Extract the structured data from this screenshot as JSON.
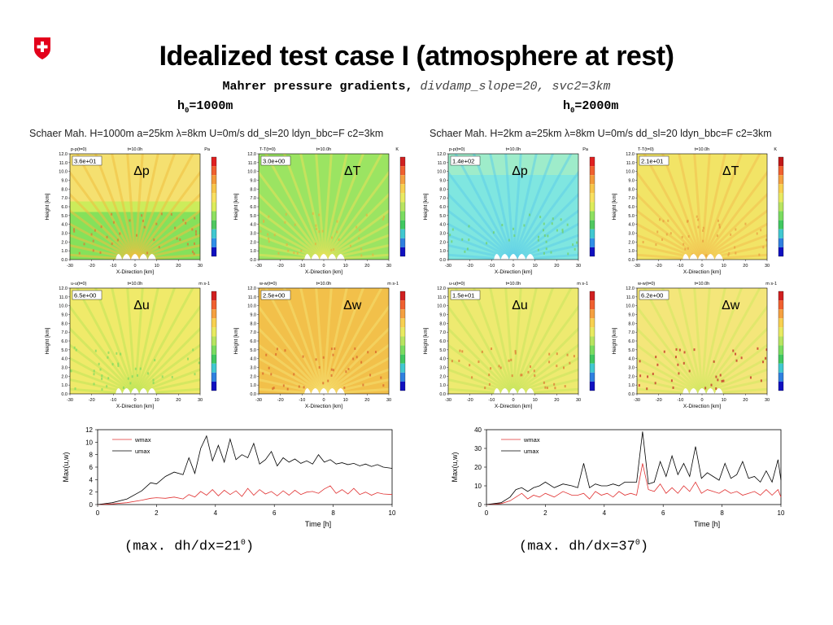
{
  "header": {
    "title": "Idealized test case I (atmosphere at rest)",
    "subtitle_bold": "Mahrer pressure gradients,",
    "subtitle_rest": " divdamp_slope=20, svc2=3km",
    "h0_left_prefix": "h",
    "h0_left_sub": "0",
    "h0_left_value": "=1000m",
    "h0_right_prefix": "h",
    "h0_right_sub": "0",
    "h0_right_value": "=2000m"
  },
  "config_left": "Schaer Mah. H=1000m a=25km λ=8km U=0m/s dd_sl=20 ldyn_bbc=F c2=3km",
  "config_right": "Schaer Mah. H=2km a=25km λ=8km U=0m/s dd_sl=20 ldyn_bbc=F c2=3km",
  "captions": {
    "left_prefix": "(max. dh/dx=21",
    "left_sup": "0",
    "left_suffix": ")",
    "right_prefix": "(max. dh/dx=37",
    "right_sup": "0",
    "right_suffix": ")"
  },
  "panels": [
    {
      "id": "L-p",
      "label": "Δp",
      "var": "p-p(t=0)",
      "time": "t=10.0h",
      "unit": "Pa",
      "max": "3.6e+01",
      "style": "p1"
    },
    {
      "id": "L-T",
      "label": "ΔT",
      "var": "T-T(t=0)",
      "time": "t=10.0h",
      "unit": "K",
      "max": "3.0e+00",
      "style": "T1"
    },
    {
      "id": "R-p",
      "label": "Δp",
      "var": "p-p(t=0)",
      "time": "t=10.0h",
      "unit": "Pa",
      "max": "1.4e+02",
      "style": "p2"
    },
    {
      "id": "R-T",
      "label": "ΔT",
      "var": "T-T(t=0)",
      "time": "t=10.0h",
      "unit": "K",
      "max": "2.1e+01",
      "style": "T2"
    },
    {
      "id": "L-u",
      "label": "Δu",
      "var": "u-u(t=0)",
      "time": "t=10.0h",
      "unit": "m s-1",
      "max": "6.5e+00",
      "style": "u1"
    },
    {
      "id": "L-w",
      "label": "Δw",
      "var": "w-w(t=0)",
      "time": "t=10.0h",
      "unit": "m s-1",
      "max": "2.5e+00",
      "style": "w1"
    },
    {
      "id": "R-u",
      "label": "Δu",
      "var": "u-u(t=0)",
      "time": "t=10.0h",
      "unit": "m s-1",
      "max": "1.5e+01",
      "style": "u2"
    },
    {
      "id": "R-w",
      "label": "Δw",
      "var": "w-w(t=0)",
      "time": "t=10.0h",
      "unit": "m s-1",
      "max": "6.2e+00",
      "style": "w2"
    }
  ],
  "field_axes": {
    "ylabel": "Height [km]",
    "xlabel": "X-Direction [km]",
    "yticks": [
      "0.0",
      "1.0",
      "2.0",
      "3.0",
      "4.0",
      "5.0",
      "6.0",
      "7.0",
      "8.0",
      "9.0",
      "10.0",
      "11.0",
      "12.0"
    ],
    "xticks": [
      "-30",
      "-20",
      "-10",
      "0",
      "10",
      "20",
      "30"
    ]
  },
  "chart_data": [
    {
      "type": "line",
      "xlabel": "Time [h]",
      "ylabel": "Max(u,w)",
      "xlim": [
        0,
        10
      ],
      "ylim": [
        0,
        12
      ],
      "xticks": [
        0,
        2,
        4,
        6,
        8,
        10
      ],
      "yticks": [
        0,
        2,
        4,
        6,
        8,
        10,
        12
      ],
      "grid": false,
      "legend_position": "top-left",
      "x": [
        0,
        0.5,
        1.0,
        1.5,
        1.8,
        2.0,
        2.3,
        2.6,
        2.9,
        3.1,
        3.3,
        3.5,
        3.7,
        3.9,
        4.1,
        4.3,
        4.5,
        4.7,
        4.9,
        5.1,
        5.3,
        5.5,
        5.7,
        5.9,
        6.1,
        6.3,
        6.5,
        6.7,
        6.9,
        7.1,
        7.3,
        7.5,
        7.7,
        7.9,
        8.1,
        8.3,
        8.5,
        8.7,
        8.9,
        9.1,
        9.3,
        9.5,
        9.7,
        10.0
      ],
      "series": [
        {
          "name": "wmax",
          "color": "#e03030",
          "values": [
            0,
            0.1,
            0.3,
            0.7,
            1.0,
            1.1,
            1.0,
            1.2,
            0.9,
            1.6,
            1.2,
            2.1,
            1.5,
            2.4,
            1.4,
            2.3,
            1.6,
            2.2,
            1.3,
            2.6,
            1.5,
            2.4,
            1.7,
            2.1,
            1.4,
            2.2,
            1.5,
            2.3,
            1.6,
            2.0,
            2.1,
            1.8,
            2.5,
            3.0,
            1.8,
            2.4,
            1.7,
            2.6,
            1.6,
            2.0,
            1.5,
            1.9,
            1.7,
            1.6
          ]
        },
        {
          "name": "umax",
          "color": "#000000",
          "values": [
            0,
            0.3,
            0.9,
            2.2,
            3.5,
            3.3,
            4.5,
            5.2,
            4.8,
            7.5,
            5.0,
            9.0,
            11.0,
            7.0,
            9.5,
            6.8,
            10.5,
            7.2,
            8.0,
            7.5,
            9.8,
            6.5,
            7.2,
            8.5,
            6.2,
            7.5,
            6.8,
            7.3,
            6.6,
            7.0,
            6.5,
            8.0,
            6.8,
            7.2,
            6.5,
            6.7,
            6.4,
            6.6,
            6.2,
            6.5,
            6.1,
            6.4,
            6.0,
            5.8
          ]
        }
      ]
    },
    {
      "type": "line",
      "xlabel": "Time [h]",
      "ylabel": "Max(u,w)",
      "xlim": [
        0,
        10
      ],
      "ylim": [
        0,
        40
      ],
      "xticks": [
        0,
        2,
        4,
        6,
        8,
        10
      ],
      "yticks": [
        0,
        10,
        20,
        30,
        40
      ],
      "grid": false,
      "legend_position": "top-left",
      "x": [
        0,
        0.5,
        0.8,
        1.0,
        1.2,
        1.4,
        1.6,
        1.8,
        2.0,
        2.3,
        2.6,
        2.9,
        3.1,
        3.3,
        3.5,
        3.7,
        3.9,
        4.1,
        4.3,
        4.5,
        4.7,
        4.9,
        5.1,
        5.3,
        5.5,
        5.7,
        5.9,
        6.1,
        6.3,
        6.5,
        6.7,
        6.9,
        7.1,
        7.3,
        7.5,
        7.7,
        7.9,
        8.1,
        8.3,
        8.5,
        8.7,
        8.9,
        9.1,
        9.3,
        9.5,
        9.7,
        9.9,
        10.0
      ],
      "series": [
        {
          "name": "wmax",
          "color": "#e03030",
          "values": [
            0,
            0.5,
            2,
            4,
            6,
            3,
            5,
            4,
            6,
            4,
            7,
            5,
            5,
            6,
            3,
            7,
            5,
            6,
            4,
            7,
            5,
            6,
            5,
            22,
            8,
            7,
            11,
            6,
            9,
            6,
            10,
            7,
            12,
            6,
            8,
            7,
            6,
            8,
            6,
            7,
            5,
            6,
            7,
            5,
            8,
            5,
            8,
            4
          ]
        },
        {
          "name": "umax",
          "color": "#000000",
          "values": [
            0,
            1,
            4,
            8,
            9,
            7,
            9,
            10,
            12,
            9,
            11,
            10,
            9,
            22,
            9,
            11,
            10,
            10,
            11,
            10,
            12,
            12,
            12,
            39,
            11,
            12,
            23,
            15,
            26,
            16,
            22,
            15,
            31,
            14,
            17,
            15,
            13,
            22,
            14,
            16,
            23,
            14,
            15,
            12,
            18,
            12,
            24,
            13
          ]
        }
      ]
    }
  ]
}
